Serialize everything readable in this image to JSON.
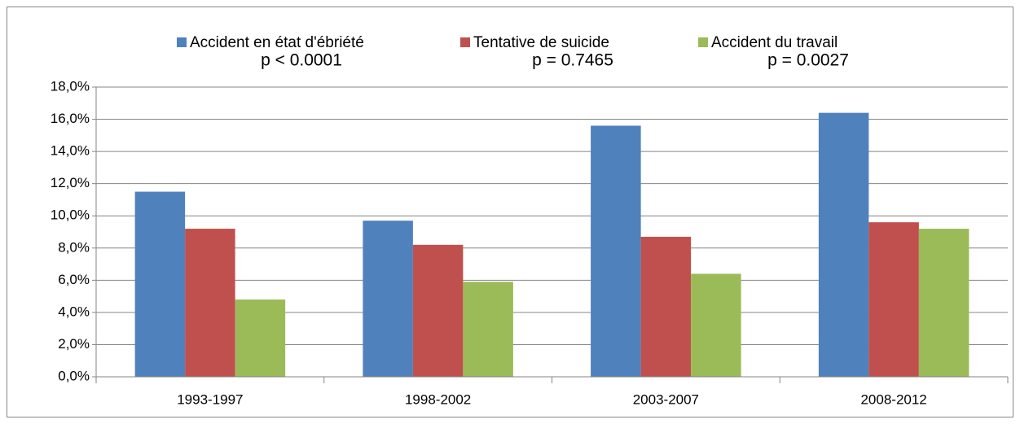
{
  "chart_data": {
    "type": "bar",
    "categories": [
      "1993-1997",
      "1998-2002",
      "2003-2007",
      "2008-2012"
    ],
    "series": [
      {
        "name": "Accident en état d'ébriété",
        "color": "#4f81bd",
        "values": [
          11.5,
          9.7,
          15.6,
          16.4
        ]
      },
      {
        "name": "Tentative de suicide",
        "color": "#c0504d",
        "values": [
          9.2,
          8.2,
          8.7,
          9.6
        ]
      },
      {
        "name": "Accident du travail",
        "color": "#9bbb59",
        "values": [
          4.8,
          5.9,
          6.4,
          9.2
        ]
      }
    ],
    "annotations": [
      "p < 0.0001",
      "p = 0.7465",
      "p = 0.0027"
    ],
    "ylim": [
      0,
      18
    ],
    "yticks": [
      {
        "value": 0,
        "label": "0,0%"
      },
      {
        "value": 2,
        "label": "2,0%"
      },
      {
        "value": 4,
        "label": "4,0%"
      },
      {
        "value": 6,
        "label": "6,0%"
      },
      {
        "value": 8,
        "label": "8,0%"
      },
      {
        "value": 10,
        "label": "10,0%"
      },
      {
        "value": 12,
        "label": "12,0%"
      },
      {
        "value": 14,
        "label": "14,0%"
      },
      {
        "value": 16,
        "label": "16,0%"
      },
      {
        "value": 18,
        "label": "18,0%"
      }
    ],
    "grid": true,
    "legend": "top"
  }
}
